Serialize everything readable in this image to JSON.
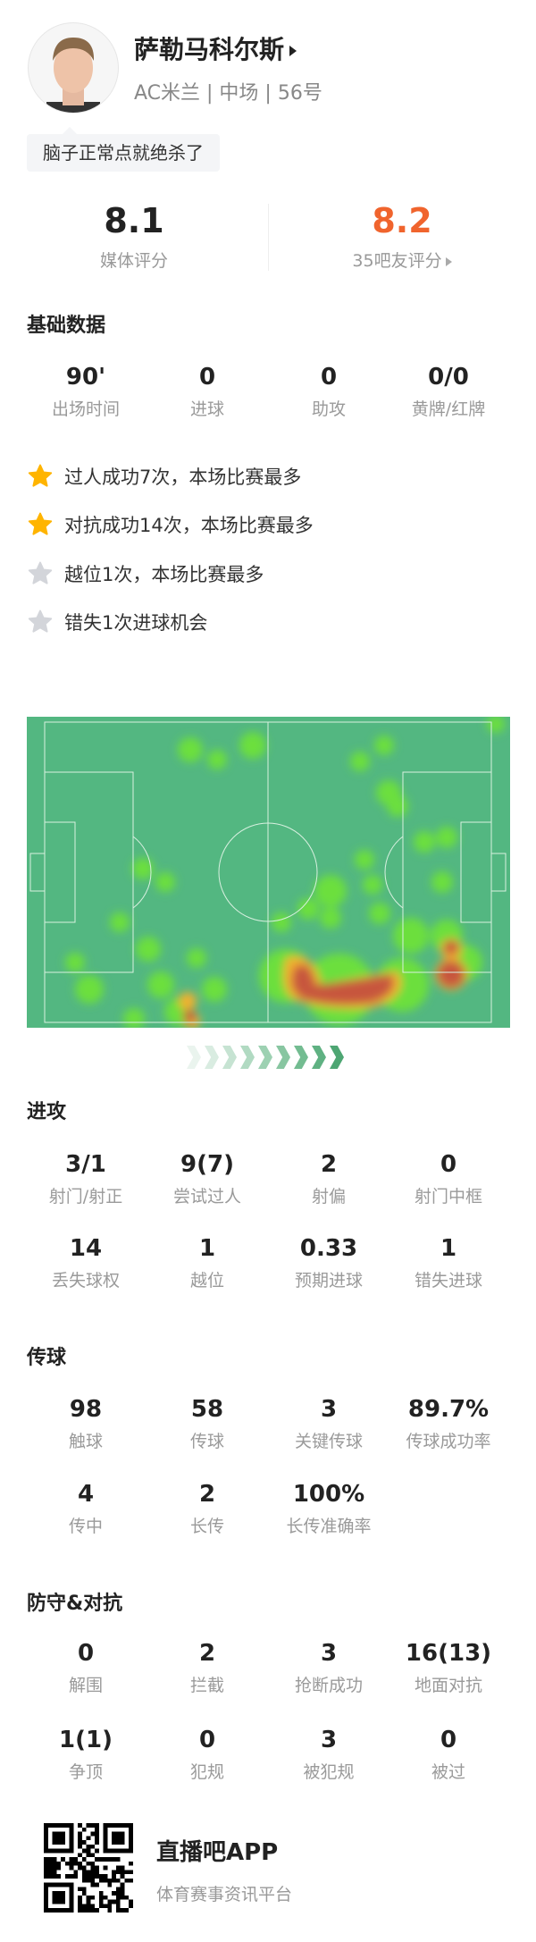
{
  "player": {
    "name": "萨勒马科尔斯",
    "info": "AC米兰 | 中场 | 56号",
    "comment": "脑子正常点就绝杀了"
  },
  "ratings": {
    "media": {
      "value": "8.1",
      "label": "媒体评分"
    },
    "fans": {
      "value": "8.2",
      "label": "35吧友评分",
      "color": "#f0642d"
    }
  },
  "basic": {
    "title": "基础数据",
    "items": [
      {
        "value": "90'",
        "label": "出场时间"
      },
      {
        "value": "0",
        "label": "进球"
      },
      {
        "value": "0",
        "label": "助攻"
      },
      {
        "value": "0/0",
        "label": "黄牌/红牌"
      }
    ]
  },
  "highlights": [
    {
      "text": "过人成功7次，本场比赛最多",
      "icon": "star-gold"
    },
    {
      "text": "对抗成功14次，本场比赛最多",
      "icon": "star-gold"
    },
    {
      "text": "越位1次，本场比赛最多",
      "icon": "star-gray"
    },
    {
      "text": "错失1次进球机会",
      "icon": "star-gray"
    }
  ],
  "attack": {
    "title": "进攻",
    "items": [
      {
        "value": "3/1",
        "label": "射门/射正"
      },
      {
        "value": "9(7)",
        "label": "尝试过人"
      },
      {
        "value": "2",
        "label": "射偏"
      },
      {
        "value": "0",
        "label": "射门中框"
      },
      {
        "value": "14",
        "label": "丢失球权"
      },
      {
        "value": "1",
        "label": "越位"
      },
      {
        "value": "0.33",
        "label": "预期进球"
      },
      {
        "value": "1",
        "label": "错失进球"
      }
    ]
  },
  "passing": {
    "title": "传球",
    "items": [
      {
        "value": "98",
        "label": "触球"
      },
      {
        "value": "58",
        "label": "传球"
      },
      {
        "value": "3",
        "label": "关键传球"
      },
      {
        "value": "89.7%",
        "label": "传球成功率"
      },
      {
        "value": "4",
        "label": "传中"
      },
      {
        "value": "2",
        "label": "长传"
      },
      {
        "value": "100%",
        "label": "长传准确率"
      }
    ]
  },
  "defense": {
    "title": "防守&对抗",
    "items": [
      {
        "value": "0",
        "label": "解围"
      },
      {
        "value": "2",
        "label": "拦截"
      },
      {
        "value": "3",
        "label": "抢断成功"
      },
      {
        "value": "16(13)",
        "label": "地面对抗"
      },
      {
        "value": "1(1)",
        "label": "争顶"
      },
      {
        "value": "0",
        "label": "犯规"
      },
      {
        "value": "3",
        "label": "被犯规"
      },
      {
        "value": "0",
        "label": "被过"
      }
    ]
  },
  "footer": {
    "app": "直播吧APP",
    "tagline": "体育赛事资讯平台"
  },
  "colors": {
    "pitch": "#53b781",
    "star_gold": "#ffb400",
    "star_gray": "#d3d5da"
  }
}
